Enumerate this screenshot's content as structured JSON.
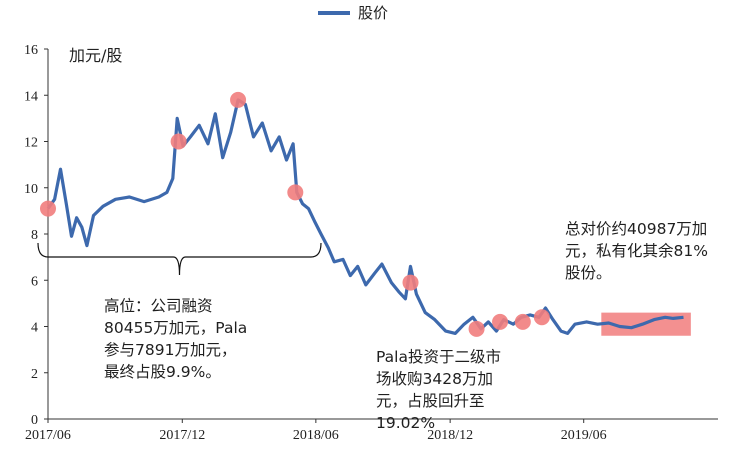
{
  "chart_data": {
    "type": "line",
    "unit_label": "加元/股",
    "ylim": [
      0,
      16
    ],
    "yticks": [
      0,
      2,
      4,
      6,
      8,
      10,
      12,
      14,
      16
    ],
    "x_start": "2017-06",
    "x_end": "2019-12",
    "xticks": [
      {
        "date": "2017-06",
        "label": "2017/06"
      },
      {
        "date": "2017-12",
        "label": "2017/12"
      },
      {
        "date": "2018-06",
        "label": "2018/06"
      },
      {
        "date": "2018-12",
        "label": "2018/12"
      },
      {
        "date": "2019-06",
        "label": "2019/06"
      }
    ],
    "legend": {
      "position": "top-center",
      "label": "股价"
    },
    "series": [
      {
        "name": "股价",
        "color": "#3d69ad",
        "points": [
          [
            "2017-06-01",
            9.1
          ],
          [
            "2017-06-10",
            9.5
          ],
          [
            "2017-06-18",
            10.8
          ],
          [
            "2017-06-26",
            9.3
          ],
          [
            "2017-07-03",
            7.9
          ],
          [
            "2017-07-10",
            8.7
          ],
          [
            "2017-07-17",
            8.3
          ],
          [
            "2017-07-24",
            7.5
          ],
          [
            "2017-08-02",
            8.8
          ],
          [
            "2017-08-15",
            9.2
          ],
          [
            "2017-09-01",
            9.5
          ],
          [
            "2017-09-20",
            9.6
          ],
          [
            "2017-10-10",
            9.4
          ],
          [
            "2017-10-30",
            9.6
          ],
          [
            "2017-11-10",
            9.8
          ],
          [
            "2017-11-18",
            10.4
          ],
          [
            "2017-11-24",
            13.0
          ],
          [
            "2017-12-02",
            11.8
          ],
          [
            "2017-12-12",
            12.2
          ],
          [
            "2017-12-24",
            12.7
          ],
          [
            "2018-01-05",
            11.9
          ],
          [
            "2018-01-15",
            13.2
          ],
          [
            "2018-01-25",
            11.3
          ],
          [
            "2018-02-05",
            12.4
          ],
          [
            "2018-02-15",
            13.8
          ],
          [
            "2018-02-25",
            13.6
          ],
          [
            "2018-03-08",
            12.2
          ],
          [
            "2018-03-20",
            12.8
          ],
          [
            "2018-04-01",
            11.6
          ],
          [
            "2018-04-12",
            12.2
          ],
          [
            "2018-04-22",
            11.2
          ],
          [
            "2018-05-01",
            11.9
          ],
          [
            "2018-05-06",
            9.8
          ],
          [
            "2018-05-14",
            9.3
          ],
          [
            "2018-05-22",
            9.1
          ],
          [
            "2018-05-31",
            8.5
          ],
          [
            "2018-06-08",
            8.0
          ],
          [
            "2018-06-18",
            7.4
          ],
          [
            "2018-06-26",
            6.8
          ],
          [
            "2018-07-08",
            6.9
          ],
          [
            "2018-07-18",
            6.2
          ],
          [
            "2018-07-28",
            6.6
          ],
          [
            "2018-08-08",
            5.8
          ],
          [
            "2018-08-20",
            6.3
          ],
          [
            "2018-08-30",
            6.7
          ],
          [
            "2018-09-12",
            5.9
          ],
          [
            "2018-09-22",
            5.5
          ],
          [
            "2018-10-01",
            5.2
          ],
          [
            "2018-10-08",
            6.6
          ],
          [
            "2018-10-16",
            5.4
          ],
          [
            "2018-10-28",
            4.6
          ],
          [
            "2018-11-10",
            4.3
          ],
          [
            "2018-11-25",
            3.8
          ],
          [
            "2018-12-08",
            3.7
          ],
          [
            "2018-12-20",
            4.1
          ],
          [
            "2019-01-01",
            4.4
          ],
          [
            "2019-01-12",
            3.9
          ],
          [
            "2019-01-22",
            4.2
          ],
          [
            "2019-02-02",
            3.8
          ],
          [
            "2019-02-12",
            4.3
          ],
          [
            "2019-02-25",
            4.1
          ],
          [
            "2019-03-08",
            4.4
          ],
          [
            "2019-03-20",
            4.5
          ],
          [
            "2019-04-01",
            4.4
          ],
          [
            "2019-04-10",
            4.8
          ],
          [
            "2019-04-20",
            4.3
          ],
          [
            "2019-05-01",
            3.8
          ],
          [
            "2019-05-10",
            3.7
          ],
          [
            "2019-05-20",
            4.1
          ],
          [
            "2019-06-05",
            4.2
          ],
          [
            "2019-06-20",
            4.1
          ],
          [
            "2019-07-05",
            4.15
          ],
          [
            "2019-07-20",
            4.0
          ],
          [
            "2019-08-05",
            3.95
          ],
          [
            "2019-08-20",
            4.1
          ],
          [
            "2019-09-05",
            4.3
          ],
          [
            "2019-09-20",
            4.4
          ],
          [
            "2019-10-01",
            4.35
          ],
          [
            "2019-10-15",
            4.4
          ]
        ]
      }
    ],
    "markers": [
      {
        "date": "2017-06-01",
        "value": 9.1
      },
      {
        "date": "2017-11-26",
        "value": 12.0
      },
      {
        "date": "2018-02-15",
        "value": 13.8
      },
      {
        "date": "2018-05-04",
        "value": 9.8
      },
      {
        "date": "2018-10-08",
        "value": 5.9
      },
      {
        "date": "2019-01-06",
        "value": 3.9
      },
      {
        "date": "2019-02-07",
        "value": 4.2
      },
      {
        "date": "2019-03-10",
        "value": 4.2
      },
      {
        "date": "2019-04-05",
        "value": 4.4
      }
    ],
    "highlight_box": {
      "from": "2019-06-25",
      "to": "2019-10-25",
      "ymin": 3.6,
      "ymax": 4.6
    },
    "brace": {
      "from": "2017-06-01",
      "to": "2018-06-08"
    },
    "annotations": [
      {
        "id": "raise",
        "text": "高位：公司融资\n80455万加元，Pala\n参与7891万加元，\n最终占股9.9%。"
      },
      {
        "id": "pala-buy",
        "text": "Pala投资于二级市\n场收购3428万加\n元，占股回升至\n19.02%"
      },
      {
        "id": "offer",
        "text": "总对价约40987万加\n元，私有化其余81%\n股份。"
      }
    ],
    "colors": {
      "line": "#3d69ad",
      "marker": "#f17d7d",
      "highlight": "#f17d7d",
      "axis": "#333333"
    }
  }
}
